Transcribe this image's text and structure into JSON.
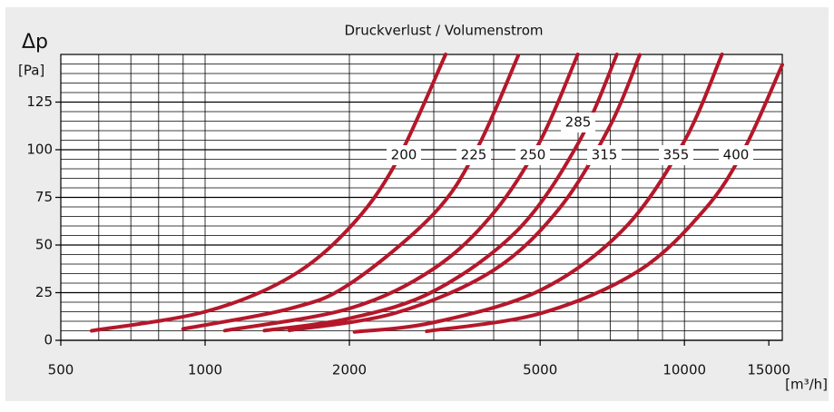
{
  "chart_data": {
    "type": "line",
    "title": "Druckverlust / Volumenstrom",
    "y_label": "Δp",
    "y_unit": "[Pa]",
    "x_unit": "[m³/h]",
    "x_log": true,
    "xlim": [
      500,
      16000
    ],
    "xticks": [
      500,
      1000,
      2000,
      5000,
      10000,
      15000
    ],
    "x_grid": [
      500,
      600,
      700,
      800,
      900,
      1000,
      2000,
      3000,
      4000,
      5000,
      6000,
      7000,
      8000,
      9000,
      10000
    ],
    "ylim": [
      0,
      150
    ],
    "yticks": [
      0,
      25,
      50,
      75,
      100,
      125
    ],
    "y_grid_step": 5,
    "grid": true,
    "series": [
      {
        "name": "200",
        "color": "#b5172a",
        "x": [
          580,
          1000,
          1500,
          2000,
          2500,
          3175
        ],
        "values": [
          5,
          15,
          33,
          59,
          93,
          150
        ]
      },
      {
        "name": "225",
        "color": "#b5172a",
        "x": [
          900,
          1500,
          2000,
          3000,
          3700,
          4500
        ],
        "values": [
          6,
          16.6,
          29.5,
          66.4,
          101,
          149.4
        ]
      },
      {
        "name": "250",
        "color": "#b5172a",
        "x": [
          1100,
          2000,
          3000,
          4000,
          5000,
          5990
        ],
        "values": [
          5.1,
          16.7,
          37.6,
          66.9,
          104.5,
          150
        ]
      },
      {
        "name": "285",
        "color": "#b5172a",
        "x": [
          1330,
          2000,
          3000,
          4500,
          6000,
          7230
        ],
        "values": [
          5.1,
          11.5,
          25.8,
          58.1,
          103.3,
          150
        ]
      },
      {
        "name": "315",
        "color": "#b5172a",
        "x": [
          1500,
          2500,
          4000,
          5500,
          7000,
          8070
        ],
        "values": [
          5.2,
          14.4,
          36.8,
          69.6,
          112.7,
          149.8
        ]
      },
      {
        "name": "355",
        "color": "#b5172a",
        "x": [
          2050,
          3000,
          5000,
          7500,
          10000,
          11980
        ],
        "values": [
          4.4,
          9.4,
          26.2,
          58.8,
          104.6,
          150.1
        ]
      },
      {
        "name": "400",
        "color": "#b5172a",
        "x": [
          2900,
          5000,
          8000,
          11000,
          13300,
          16000
        ],
        "values": [
          4.75,
          14.1,
          36.2,
          68.4,
          99.9,
          144.6
        ]
      }
    ]
  }
}
